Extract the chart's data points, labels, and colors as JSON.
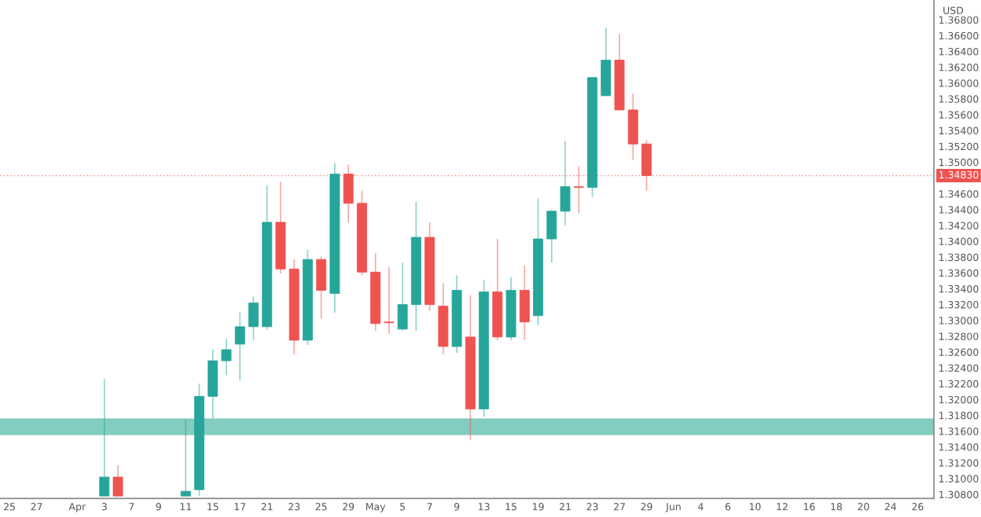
{
  "chart_data": {
    "type": "candlestick",
    "ylabel": "USD",
    "categories": [
      "25",
      null,
      "27",
      null,
      null,
      "Apr",
      null,
      "3",
      null,
      "7",
      null,
      "9",
      null,
      "11",
      null,
      "15",
      null,
      "17",
      null,
      "21",
      null,
      "23",
      null,
      "25",
      null,
      "29",
      null,
      "May",
      null,
      "5",
      null,
      "7",
      null,
      "9",
      null,
      "13",
      null,
      "15",
      null,
      "19",
      null,
      "21",
      null,
      "23",
      null,
      "27",
      null,
      "29",
      null,
      "Jun",
      null,
      "4",
      null,
      "6",
      null,
      "10",
      null,
      "12",
      null,
      "16",
      null,
      "18",
      null,
      "20",
      null,
      "24",
      null,
      "26"
    ],
    "ohlc": [
      null,
      null,
      null,
      null,
      null,
      null,
      null,
      [
        1.3078,
        1.3226,
        1.3078,
        1.3102
      ],
      [
        1.3102,
        1.3117,
        1.3078,
        1.3078
      ],
      null,
      null,
      null,
      null,
      [
        1.3078,
        1.3174,
        1.3078,
        1.3084
      ],
      [
        1.3086,
        1.322,
        1.3078,
        1.3204
      ],
      [
        1.3204,
        1.3263,
        1.3176,
        1.3249
      ],
      [
        1.3249,
        1.3277,
        1.3231,
        1.3263
      ],
      [
        1.327,
        1.331,
        1.3224,
        1.3292
      ],
      [
        1.3292,
        1.333,
        1.3275,
        1.3322
      ],
      [
        1.3292,
        1.3471,
        1.3288,
        1.3424
      ],
      [
        1.3424,
        1.3475,
        1.3359,
        1.3365
      ],
      [
        1.3365,
        1.3377,
        1.3257,
        1.3275
      ],
      [
        1.3275,
        1.3389,
        1.3269,
        1.3377
      ],
      [
        1.3377,
        1.3381,
        1.3302,
        1.3338
      ],
      [
        1.3334,
        1.3499,
        1.331,
        1.3485
      ],
      [
        1.3485,
        1.3497,
        1.3424,
        1.3448
      ],
      [
        1.3448,
        1.3464,
        1.3357,
        1.3361
      ],
      [
        1.3361,
        1.3385,
        1.3287,
        1.3296
      ],
      [
        1.3298,
        1.3367,
        1.3283,
        1.3297
      ],
      [
        1.3289,
        1.3373,
        1.3287,
        1.332
      ],
      [
        1.332,
        1.345,
        1.3287,
        1.3405
      ],
      [
        1.3405,
        1.3424,
        1.3312,
        1.332
      ],
      [
        1.3318,
        1.3347,
        1.3257,
        1.3267
      ],
      [
        1.3267,
        1.3357,
        1.3259,
        1.3338
      ],
      [
        1.3279,
        1.3332,
        1.3149,
        1.3188
      ],
      [
        1.3188,
        1.3351,
        1.3178,
        1.3336
      ],
      [
        1.3336,
        1.3403,
        1.3275,
        1.3279
      ],
      [
        1.3279,
        1.3355,
        1.3275,
        1.3338
      ],
      [
        1.3338,
        1.3369,
        1.3275,
        1.3298
      ],
      [
        1.3306,
        1.3454,
        1.3294,
        1.3403
      ],
      [
        1.3403,
        1.344,
        1.3373,
        1.3438
      ],
      [
        1.3438,
        1.3527,
        1.342,
        1.3469
      ],
      [
        1.3469,
        1.3495,
        1.3436,
        1.3468
      ],
      [
        1.3468,
        1.3607,
        1.3456,
        1.3607
      ],
      [
        1.3584,
        1.367,
        1.3584,
        1.3629
      ],
      [
        1.3629,
        1.3662,
        1.3566,
        1.3566
      ],
      [
        1.3566,
        1.3587,
        1.3503,
        1.3523
      ],
      [
        1.3523,
        1.3528,
        1.3464,
        1.3483
      ],
      null,
      null,
      null,
      null,
      null,
      null,
      null,
      null,
      null,
      null,
      null,
      null,
      null,
      null,
      null,
      null,
      null,
      null,
      null,
      null
    ],
    "colors": [
      null,
      null,
      null,
      null,
      null,
      null,
      null,
      "#26a69a",
      "#ef5350",
      null,
      null,
      null,
      null,
      "#26a69a",
      "#26a69a",
      "#26a69a",
      "#26a69a",
      "#26a69a",
      "#26a69a",
      "#26a69a",
      "#ef5350",
      "#ef5350",
      "#26a69a",
      "#ef5350",
      "#26a69a",
      "#ef5350",
      "#ef5350",
      "#ef5350",
      "#ef5350",
      "#26a69a",
      "#26a69a",
      "#ef5350",
      "#ef5350",
      "#26a69a",
      "#ef5350",
      "#26a69a",
      "#ef5350",
      "#26a69a",
      "#ef5350",
      "#26a69a",
      "#26a69a",
      "#26a69a",
      "#ef5350",
      "#26a69a",
      "#26a69a",
      "#ef5350",
      "#ef5350",
      "#ef5350",
      null,
      null,
      null,
      null,
      null,
      null,
      null,
      null,
      null,
      null,
      null,
      null,
      null,
      null,
      null,
      null,
      null,
      null,
      null,
      null
    ],
    "ylim": [
      1.3075,
      1.3705
    ],
    "yticks": [
      {
        "value": 1.308,
        "label": "1.30800"
      },
      {
        "value": 1.31,
        "label": "1.31000"
      },
      {
        "value": 1.312,
        "label": "1.31200"
      },
      {
        "value": 1.314,
        "label": "1.31400"
      },
      {
        "value": 1.316,
        "label": "1.31600"
      },
      {
        "value": 1.318,
        "label": "1.31800"
      },
      {
        "value": 1.32,
        "label": "1.32000"
      },
      {
        "value": 1.322,
        "label": "1.32200"
      },
      {
        "value": 1.324,
        "label": "1.32400"
      },
      {
        "value": 1.326,
        "label": "1.32600"
      },
      {
        "value": 1.328,
        "label": "1.32800"
      },
      {
        "value": 1.33,
        "label": "1.33000"
      },
      {
        "value": 1.332,
        "label": "1.33200"
      },
      {
        "value": 1.334,
        "label": "1.33400"
      },
      {
        "value": 1.336,
        "label": "1.33600"
      },
      {
        "value": 1.338,
        "label": "1.33800"
      },
      {
        "value": 1.34,
        "label": "1.34000"
      },
      {
        "value": 1.342,
        "label": "1.34200"
      },
      {
        "value": 1.344,
        "label": "1.34400"
      },
      {
        "value": 1.346,
        "label": "1.34600"
      },
      {
        "value": 1.35,
        "label": "1.35000"
      },
      {
        "value": 1.352,
        "label": "1.35200"
      },
      {
        "value": 1.354,
        "label": "1.35400"
      },
      {
        "value": 1.356,
        "label": "1.35600"
      },
      {
        "value": 1.358,
        "label": "1.35800"
      },
      {
        "value": 1.36,
        "label": "1.36000"
      },
      {
        "value": 1.362,
        "label": "1.36200"
      },
      {
        "value": 1.364,
        "label": "1.36400"
      },
      {
        "value": 1.366,
        "label": "1.36600"
      },
      {
        "value": 1.368,
        "label": "1.36800"
      }
    ],
    "ref_lines": [
      {
        "axis": "y",
        "value": 1.3483,
        "label": "1.34830",
        "color": "#ef5350",
        "line_style": "dotted"
      }
    ],
    "bands": [
      {
        "axis": "y",
        "from": 1.3155,
        "to": 1.3176,
        "color": "#82cdbf"
      }
    ]
  }
}
